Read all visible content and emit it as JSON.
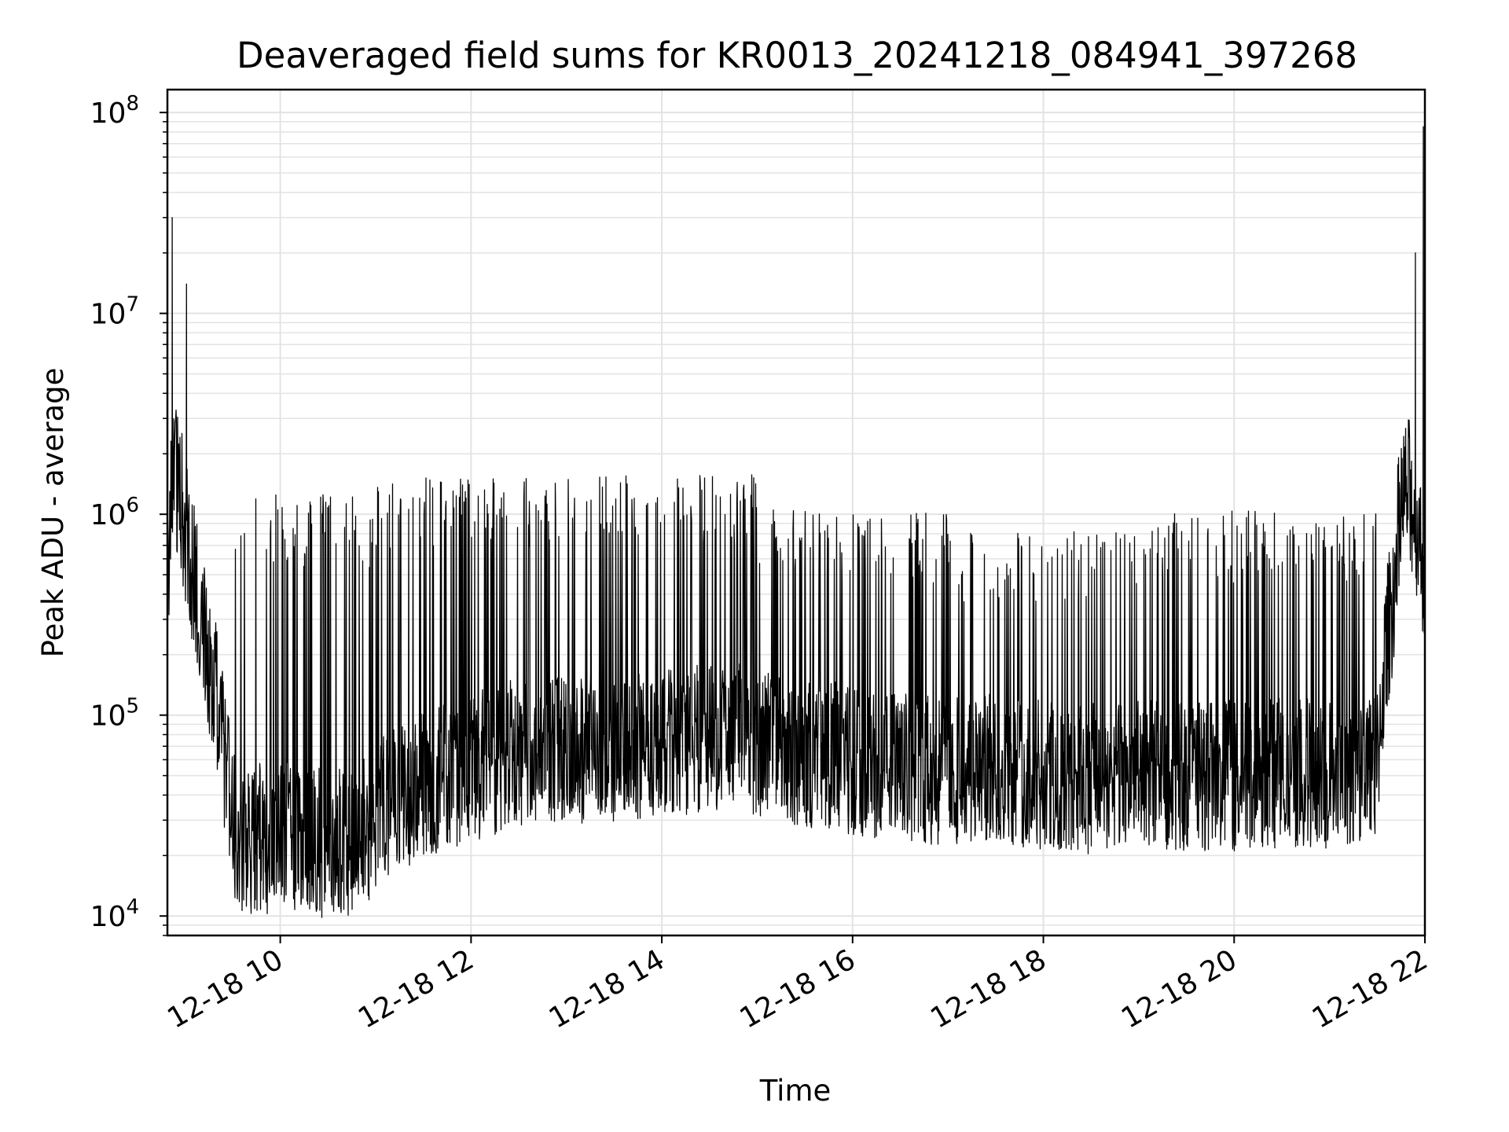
{
  "chart_data": {
    "type": "line",
    "title": "Deaveraged field sums for KR0013_20241218_084941_397268",
    "xlabel": "Time",
    "ylabel": "Peak ADU - average",
    "yscale": "log",
    "ylim": [
      8000,
      130000000
    ],
    "xlim": [
      "12-18 08:49",
      "12-18 22:00"
    ],
    "grid": true,
    "line_color": "#000000",
    "x_ticks": [
      "12-18 10",
      "12-18 12",
      "12-18 14",
      "12-18 16",
      "12-18 18",
      "12-18 20",
      "12-18 22"
    ],
    "y_ticks": [
      {
        "base": "10",
        "exp": "4"
      },
      {
        "base": "10",
        "exp": "5"
      },
      {
        "base": "10",
        "exp": "6"
      },
      {
        "base": "10",
        "exp": "7"
      },
      {
        "base": "10",
        "exp": "8"
      }
    ],
    "series": [
      {
        "x": [
          "12-18 08:49",
          "12-18 08:51",
          "12-18 08:53",
          "12-18 08:55",
          "12-18 08:57",
          "12-18 09:00",
          "12-18 09:05",
          "12-18 09:10",
          "12-18 09:15",
          "12-18 09:20",
          "12-18 09:25",
          "12-18 09:30",
          "12-18 09:35",
          "12-18 09:40",
          "12-18 09:45",
          "12-18 09:50",
          "12-18 10:00",
          "12-18 10:15",
          "12-18 10:30",
          "12-18 10:45",
          "12-18 11:00",
          "12-18 11:15",
          "12-18 11:30",
          "12-18 11:45",
          "12-18 12:00",
          "12-18 12:30",
          "12-18 13:00",
          "12-18 13:30",
          "12-18 14:00",
          "12-18 14:30",
          "12-18 15:00",
          "12-18 15:30",
          "12-18 16:00",
          "12-18 16:30",
          "12-18 17:00",
          "12-18 17:30",
          "12-18 18:00",
          "12-18 18:30",
          "12-18 19:00",
          "12-18 19:30",
          "12-18 20:00",
          "12-18 20:30",
          "12-18 21:00",
          "12-18 21:15",
          "12-18 21:30",
          "12-18 21:35",
          "12-18 21:40",
          "12-18 21:45",
          "12-18 21:50",
          "12-18 21:55",
          "12-18 22:00"
        ],
        "baseline": [
          400000,
          1200000,
          1900000,
          1500000,
          1200000,
          900000,
          500000,
          350000,
          200000,
          120000,
          60000,
          30000,
          25000,
          24000,
          25000,
          24000,
          25000,
          24000,
          23000,
          24000,
          30000,
          40000,
          45000,
          50000,
          55000,
          65000,
          70000,
          65000,
          70000,
          80000,
          75000,
          65000,
          60000,
          55000,
          52000,
          55000,
          50000,
          48000,
          52000,
          50000,
          50000,
          52000,
          50000,
          55000,
          60000,
          200000,
          400000,
          1200000,
          1300000,
          900000,
          500000
        ],
        "spikes": [
          {
            "x": "12-18 08:52",
            "y": 30000000
          },
          {
            "x": "12-18 09:01",
            "y": 14000000
          },
          {
            "x": "12-18 21:54",
            "y": 20000000
          },
          {
            "x": "12-18 21:59",
            "y": 85000000
          }
        ],
        "spike_envelope": [
          {
            "from": "12-18 09:30",
            "to": "12-18 11:00",
            "peak": 1200000
          },
          {
            "from": "12-18 11:00",
            "to": "12-18 13:00",
            "peak": 1500000
          },
          {
            "from": "12-18 13:00",
            "to": "12-18 15:00",
            "peak": 1500000
          },
          {
            "from": "12-18 15:00",
            "to": "12-18 17:00",
            "peak": 1000000
          },
          {
            "from": "12-18 17:00",
            "to": "12-18 19:00",
            "peak": 800000
          },
          {
            "from": "12-18 19:00",
            "to": "12-18 21:30",
            "peak": 1000000
          }
        ]
      }
    ]
  }
}
